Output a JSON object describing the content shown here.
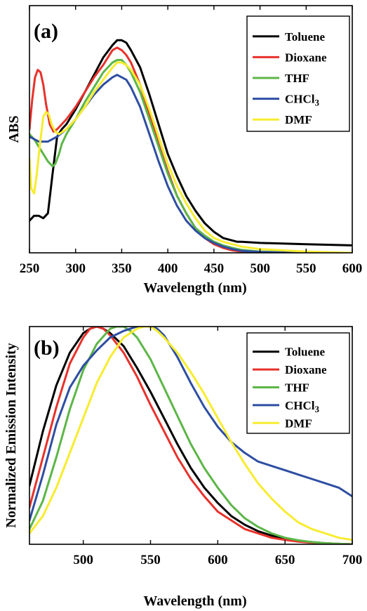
{
  "chart_data": [
    {
      "type": "line",
      "panel_label": "(a)",
      "xlabel": "Wavelength (nm)",
      "ylabel": "ABS",
      "xlim": [
        250,
        600
      ],
      "ylim": [
        0,
        1.0
      ],
      "xticks": [
        250,
        300,
        350,
        400,
        450,
        500,
        550,
        600
      ],
      "y_tick_labels": false,
      "legend_position": "top-right",
      "grid": false,
      "series": [
        {
          "name": "Toluene",
          "color": "#000000",
          "x": [
            250,
            255,
            260,
            265,
            270,
            275,
            280,
            285,
            290,
            295,
            300,
            310,
            320,
            330,
            340,
            345,
            350,
            355,
            360,
            370,
            380,
            390,
            400,
            410,
            420,
            430,
            440,
            450,
            460,
            470,
            475,
            480,
            500,
            550,
            600
          ],
          "y": [
            0.13,
            0.15,
            0.15,
            0.14,
            0.16,
            0.32,
            0.47,
            0.5,
            0.52,
            0.55,
            0.58,
            0.65,
            0.72,
            0.79,
            0.84,
            0.86,
            0.86,
            0.85,
            0.82,
            0.75,
            0.64,
            0.52,
            0.4,
            0.31,
            0.23,
            0.17,
            0.12,
            0.085,
            0.06,
            0.05,
            0.045,
            0.045,
            0.04,
            0.035,
            0.03
          ]
        },
        {
          "name": "Dioxane",
          "color": "#e8312b",
          "x": [
            250,
            253,
            256,
            259,
            262,
            265,
            268,
            272,
            276,
            280,
            285,
            290,
            300,
            310,
            320,
            330,
            340,
            345,
            350,
            355,
            360,
            370,
            380,
            390,
            400,
            410,
            420,
            430,
            440,
            450,
            460,
            470,
            480,
            500,
            550,
            600
          ],
          "y": [
            0.5,
            0.62,
            0.71,
            0.74,
            0.73,
            0.68,
            0.6,
            0.52,
            0.49,
            0.5,
            0.52,
            0.54,
            0.59,
            0.65,
            0.71,
            0.76,
            0.82,
            0.83,
            0.82,
            0.8,
            0.77,
            0.68,
            0.56,
            0.44,
            0.33,
            0.23,
            0.16,
            0.1,
            0.06,
            0.035,
            0.02,
            0.01,
            0.005,
            0.0,
            0.0,
            0.0
          ]
        },
        {
          "name": "THF",
          "color": "#5cb647",
          "x": [
            250,
            255,
            260,
            265,
            270,
            275,
            278,
            282,
            285,
            290,
            300,
            310,
            320,
            330,
            340,
            345,
            350,
            355,
            360,
            370,
            380,
            390,
            400,
            410,
            420,
            430,
            440,
            450,
            460,
            470,
            480,
            500,
            550,
            600
          ],
          "y": [
            0.48,
            0.46,
            0.43,
            0.4,
            0.37,
            0.35,
            0.36,
            0.4,
            0.44,
            0.48,
            0.54,
            0.61,
            0.67,
            0.73,
            0.77,
            0.78,
            0.78,
            0.76,
            0.73,
            0.65,
            0.54,
            0.43,
            0.32,
            0.23,
            0.16,
            0.1,
            0.07,
            0.045,
            0.03,
            0.02,
            0.012,
            0.005,
            0.0,
            0.0
          ]
        },
        {
          "name": "CHCl3",
          "display_name_base": "CHCl",
          "display_name_sub": "3",
          "color": "#2e4ea2",
          "x": [
            250,
            255,
            260,
            265,
            270,
            275,
            280,
            290,
            300,
            310,
            320,
            330,
            340,
            345,
            350,
            355,
            360,
            370,
            380,
            390,
            400,
            410,
            420,
            430,
            440,
            450,
            460,
            470,
            480,
            500,
            550,
            600
          ],
          "y": [
            0.47,
            0.46,
            0.45,
            0.45,
            0.45,
            0.46,
            0.47,
            0.5,
            0.54,
            0.59,
            0.64,
            0.68,
            0.71,
            0.72,
            0.71,
            0.7,
            0.67,
            0.59,
            0.48,
            0.37,
            0.27,
            0.19,
            0.13,
            0.09,
            0.06,
            0.04,
            0.025,
            0.015,
            0.008,
            0.003,
            0.0,
            0.0
          ]
        },
        {
          "name": "DMF",
          "color": "#f7ec2f",
          "x": [
            250,
            252,
            255,
            258,
            261,
            265,
            268,
            271,
            274,
            278,
            282,
            286,
            290,
            300,
            310,
            320,
            330,
            340,
            345,
            350,
            355,
            360,
            370,
            380,
            390,
            400,
            410,
            420,
            430,
            440,
            450,
            460,
            470,
            480,
            500,
            550,
            600
          ],
          "y": [
            0.38,
            0.26,
            0.24,
            0.32,
            0.43,
            0.55,
            0.57,
            0.56,
            0.52,
            0.49,
            0.48,
            0.49,
            0.5,
            0.54,
            0.59,
            0.65,
            0.7,
            0.75,
            0.77,
            0.77,
            0.76,
            0.74,
            0.68,
            0.58,
            0.47,
            0.36,
            0.27,
            0.2,
            0.14,
            0.09,
            0.06,
            0.045,
            0.035,
            0.025,
            0.015,
            0.005,
            0.0
          ]
        }
      ]
    },
    {
      "type": "line",
      "panel_label": "(b)",
      "xlabel": "Wavelength (nm)",
      "ylabel": "Normalized Emission Intensity",
      "xlim": [
        460,
        700
      ],
      "ylim": [
        0,
        1.0
      ],
      "xticks": [
        500,
        550,
        600,
        650,
        700
      ],
      "y_tick_labels": false,
      "legend_position": "top-right",
      "grid": false,
      "series": [
        {
          "name": "Toluene",
          "color": "#000000",
          "x": [
            460,
            470,
            480,
            490,
            500,
            505,
            510,
            515,
            520,
            530,
            540,
            550,
            560,
            570,
            580,
            590,
            600,
            610,
            620,
            630,
            640,
            650,
            660,
            670,
            680,
            690,
            700
          ],
          "y": [
            0.27,
            0.52,
            0.73,
            0.88,
            0.97,
            0.99,
            1.0,
            0.99,
            0.97,
            0.91,
            0.81,
            0.7,
            0.58,
            0.46,
            0.35,
            0.26,
            0.19,
            0.13,
            0.09,
            0.06,
            0.04,
            0.025,
            0.015,
            0.01,
            0.005,
            0.002,
            0.0
          ]
        },
        {
          "name": "Dioxane",
          "color": "#e8312b",
          "x": [
            460,
            470,
            480,
            490,
            500,
            505,
            510,
            515,
            520,
            530,
            540,
            550,
            560,
            570,
            580,
            590,
            600,
            610,
            620,
            630,
            640,
            650,
            660,
            670,
            680,
            690,
            700
          ],
          "y": [
            0.17,
            0.4,
            0.63,
            0.83,
            0.95,
            0.99,
            1.0,
            0.99,
            0.96,
            0.88,
            0.77,
            0.64,
            0.52,
            0.4,
            0.3,
            0.22,
            0.15,
            0.11,
            0.07,
            0.05,
            0.03,
            0.02,
            0.012,
            0.007,
            0.004,
            0.002,
            0.0
          ]
        },
        {
          "name": "THF",
          "color": "#5cb647",
          "x": [
            460,
            470,
            480,
            490,
            500,
            510,
            520,
            525,
            530,
            535,
            540,
            550,
            560,
            570,
            580,
            590,
            600,
            610,
            620,
            630,
            640,
            650,
            660,
            670,
            680,
            690,
            700
          ],
          "y": [
            0.07,
            0.2,
            0.4,
            0.62,
            0.8,
            0.92,
            0.99,
            1.0,
            1.0,
            0.98,
            0.95,
            0.85,
            0.72,
            0.59,
            0.46,
            0.35,
            0.26,
            0.18,
            0.12,
            0.08,
            0.05,
            0.03,
            0.018,
            0.01,
            0.005,
            0.002,
            0.0
          ]
        },
        {
          "name": "CHCl3",
          "display_name_base": "CHCl",
          "display_name_sub": "3",
          "color": "#2e4ea2",
          "x": [
            460,
            470,
            480,
            490,
            500,
            510,
            520,
            530,
            540,
            545,
            550,
            555,
            560,
            570,
            580,
            590,
            600,
            610,
            620,
            630,
            640,
            650,
            660,
            670,
            680,
            690,
            700
          ],
          "y": [
            0.11,
            0.32,
            0.55,
            0.72,
            0.82,
            0.89,
            0.95,
            0.98,
            1.0,
            1.0,
            1.0,
            0.99,
            0.96,
            0.86,
            0.74,
            0.63,
            0.54,
            0.47,
            0.42,
            0.38,
            0.36,
            0.34,
            0.32,
            0.3,
            0.28,
            0.26,
            0.22
          ]
        },
        {
          "name": "DMF",
          "color": "#f7ec2f",
          "x": [
            460,
            470,
            480,
            490,
            500,
            510,
            520,
            530,
            540,
            545,
            550,
            555,
            560,
            570,
            580,
            590,
            600,
            610,
            620,
            630,
            640,
            650,
            660,
            670,
            680,
            690,
            700
          ],
          "y": [
            0.05,
            0.13,
            0.26,
            0.42,
            0.58,
            0.74,
            0.86,
            0.95,
            0.99,
            1.0,
            1.0,
            0.98,
            0.95,
            0.88,
            0.79,
            0.69,
            0.58,
            0.47,
            0.37,
            0.28,
            0.21,
            0.15,
            0.1,
            0.07,
            0.05,
            0.03,
            0.02
          ]
        }
      ]
    }
  ]
}
